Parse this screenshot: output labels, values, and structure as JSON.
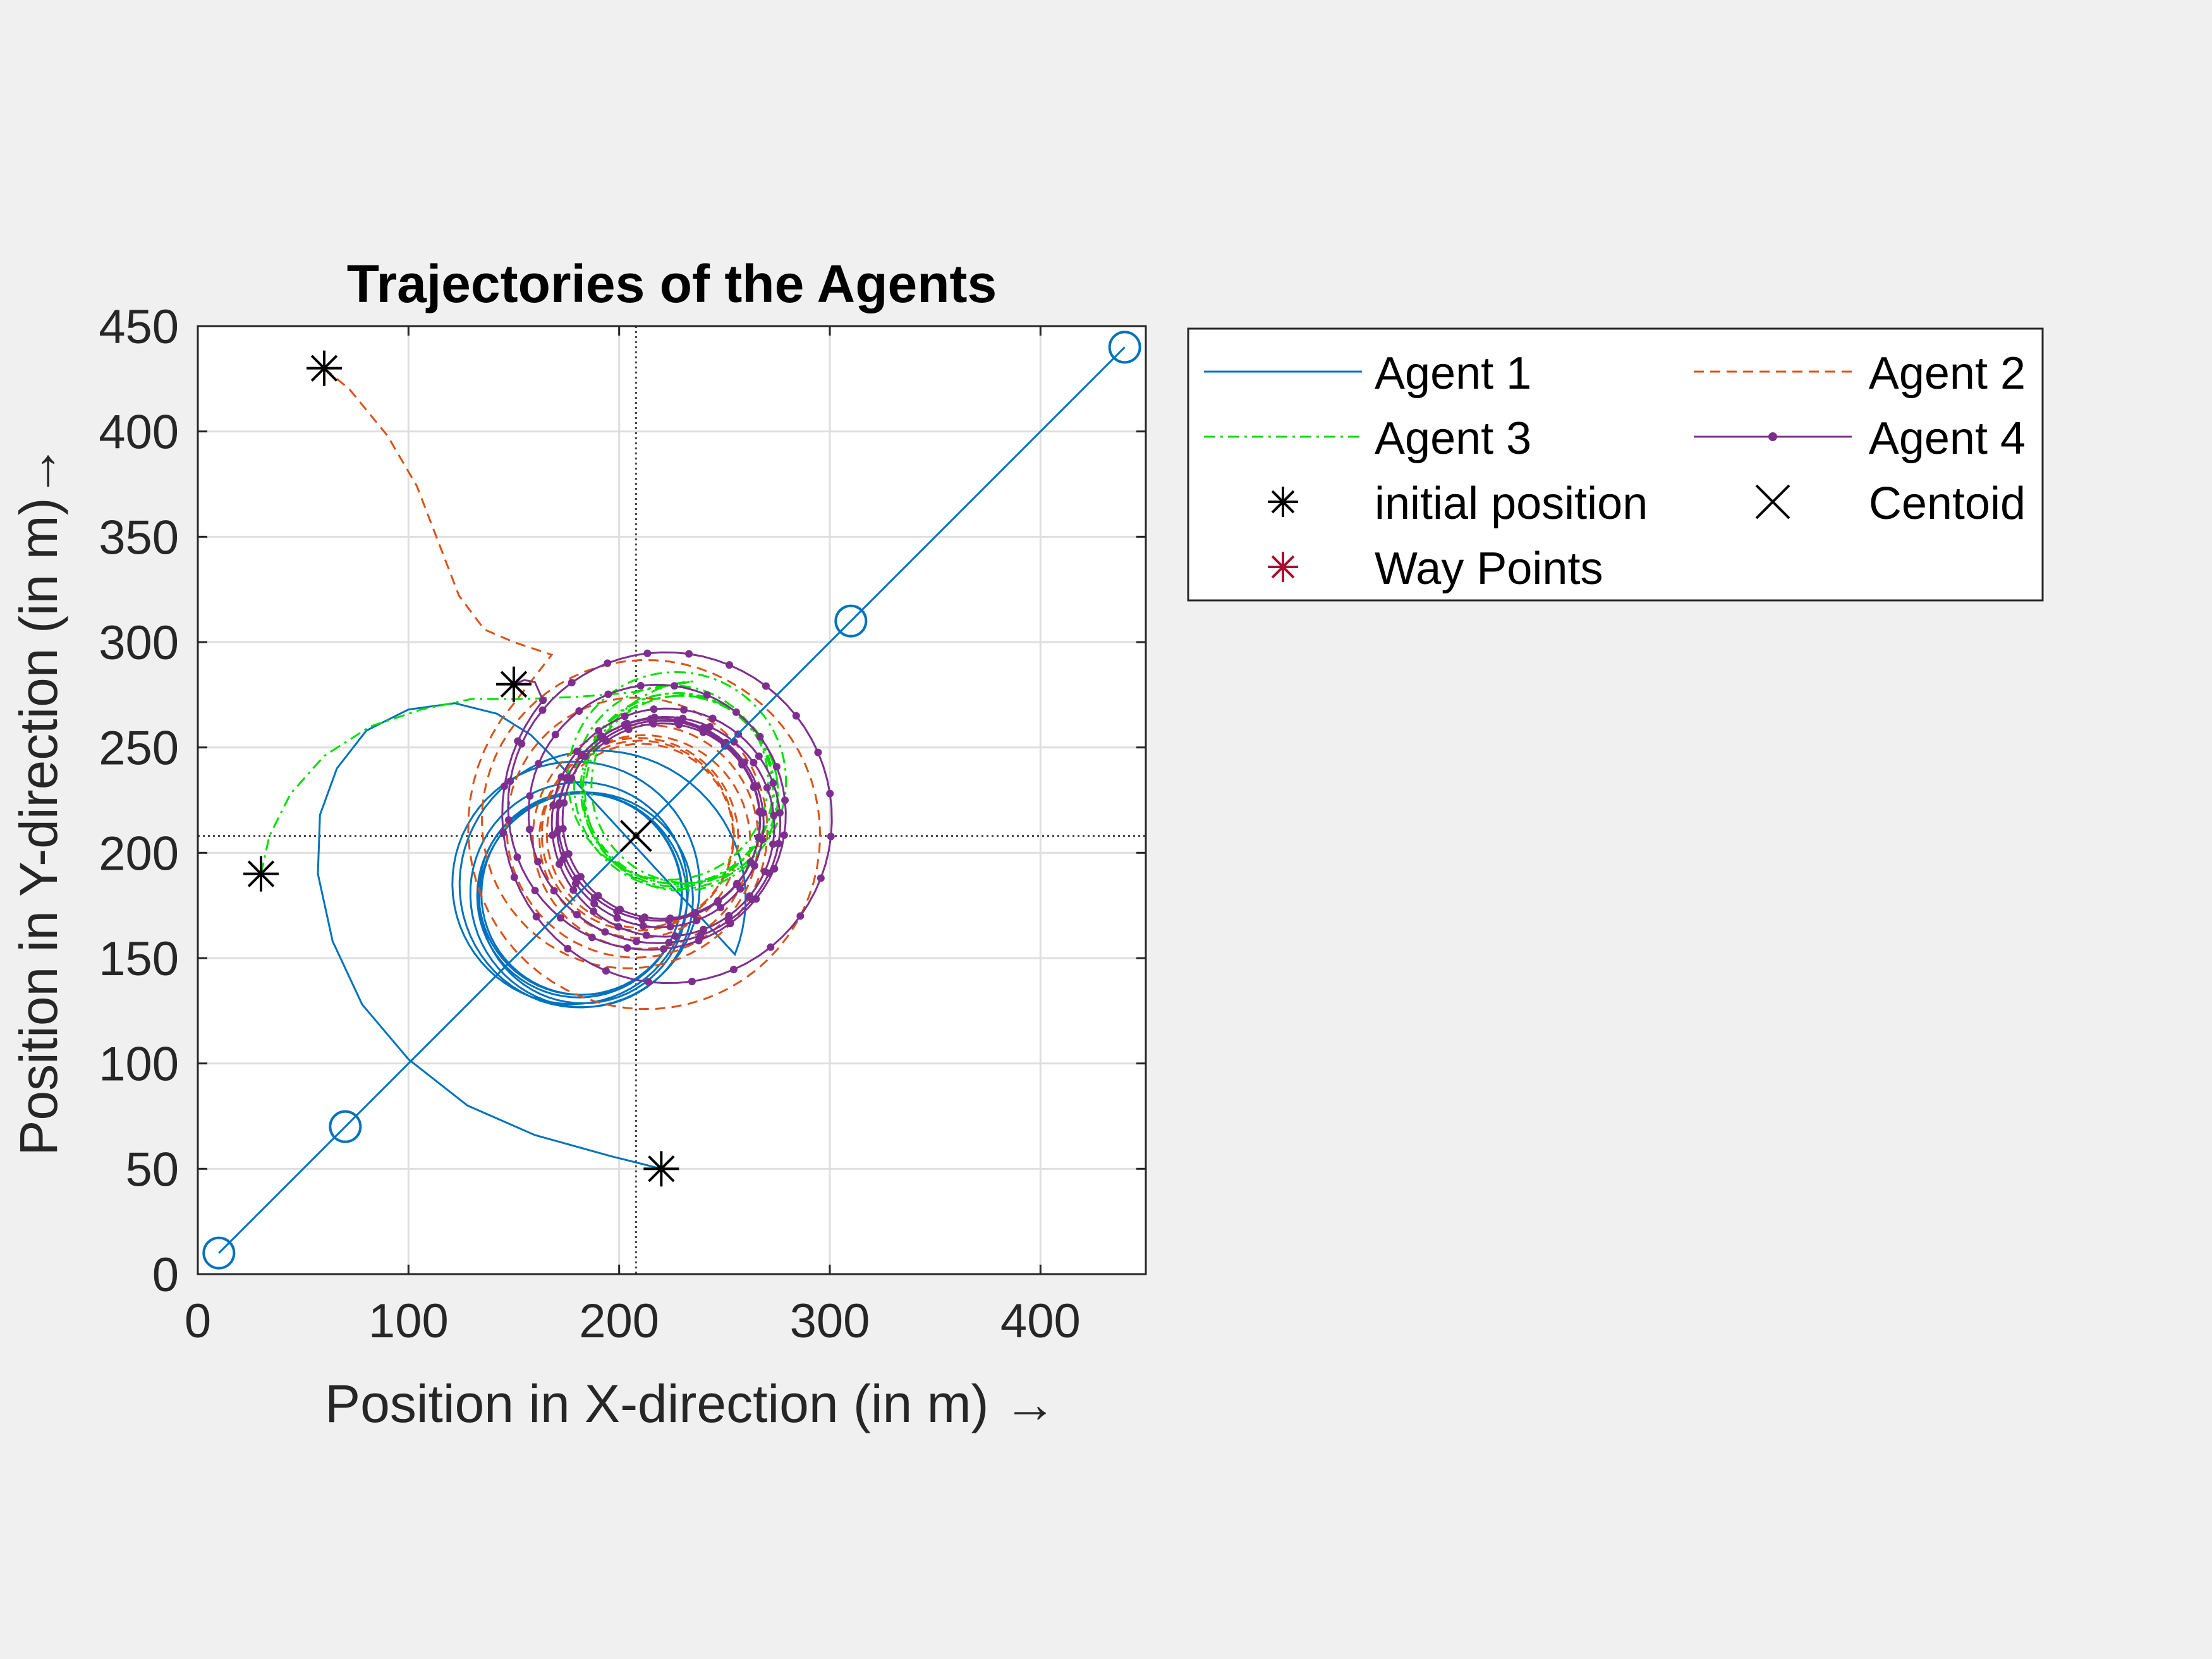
{
  "chart_data": {
    "type": "line",
    "title": "Trajectories of the Agents",
    "xlabel": "Position in X-direction (in m) →",
    "ylabel": "Position in Y-direction (in m)→",
    "xlim": [
      0,
      450
    ],
    "ylim": [
      0,
      450
    ],
    "xticks": [
      0,
      100,
      200,
      300,
      400
    ],
    "yticks": [
      0,
      50,
      100,
      150,
      200,
      250,
      300,
      350,
      400,
      450
    ],
    "grid": true,
    "legend_position": "outside-right-top",
    "centroid": [
      208,
      208
    ],
    "series": [
      {
        "name": "Agent 1",
        "color": "#0072bd",
        "style": "solid",
        "marker": "none",
        "initial": [
          220,
          50
        ],
        "center": [
          182,
          180
        ],
        "radius": 47,
        "start_angle_deg": -30,
        "approach": [
          [
            220,
            50
          ],
          [
            196,
            56
          ],
          [
            160,
            66
          ],
          [
            128,
            80
          ],
          [
            100,
            102
          ],
          [
            78,
            128
          ],
          [
            64,
            158
          ],
          [
            57,
            190
          ],
          [
            58,
            218
          ],
          [
            66,
            240
          ],
          [
            80,
            258
          ],
          [
            100,
            268
          ],
          [
            122,
            271
          ],
          [
            142,
            266
          ],
          [
            158,
            256
          ],
          [
            168,
            246
          ]
        ]
      },
      {
        "name": "Agent 2",
        "color": "#d95319",
        "style": "dashed",
        "marker": "none",
        "initial": [
          60,
          430
        ],
        "center": [
          210,
          208
        ],
        "radius": 42,
        "start_angle_deg": 140,
        "approach": [
          [
            60,
            430
          ],
          [
            72,
            420
          ],
          [
            90,
            398
          ],
          [
            104,
            374
          ],
          [
            114,
            348
          ],
          [
            124,
            322
          ],
          [
            136,
            306
          ],
          [
            150,
            300
          ],
          [
            168,
            294
          ]
        ]
      },
      {
        "name": "Agent 3",
        "color": "#00e000",
        "style": "dashdot",
        "marker": "none",
        "initial": [
          30,
          190
        ],
        "center": [
          228,
          230
        ],
        "radius": 45,
        "start_angle_deg": 90,
        "approach": [
          [
            30,
            190
          ],
          [
            34,
            208
          ],
          [
            44,
            228
          ],
          [
            60,
            246
          ],
          [
            82,
            260
          ],
          [
            106,
            268
          ],
          [
            130,
            273
          ],
          [
            155,
            273
          ],
          [
            180,
            274
          ],
          [
            205,
            276
          ]
        ]
      },
      {
        "name": "Agent 4",
        "color": "#7e2f8e",
        "style": "solid",
        "marker": "dot",
        "initial": [
          150,
          280
        ],
        "center": [
          220,
          215
        ],
        "radius": 45,
        "start_angle_deg": 135,
        "approach": [
          [
            150,
            280
          ],
          [
            155,
            282
          ],
          [
            160,
            281
          ]
        ]
      },
      {
        "name": "initial position",
        "color": "#000000",
        "marker": "asterisk",
        "points": [
          [
            220,
            50
          ],
          [
            60,
            430
          ],
          [
            30,
            190
          ],
          [
            150,
            280
          ]
        ]
      },
      {
        "name": "Centoid",
        "color": "#000000",
        "marker": "x",
        "points": [
          [
            208,
            208
          ]
        ]
      },
      {
        "name": "Way Points",
        "color": "#a2142f",
        "marker": "asterisk",
        "path": [
          [
            10,
            10
          ],
          [
            70,
            70
          ],
          [
            310,
            310
          ],
          [
            440,
            440
          ]
        ]
      }
    ]
  }
}
